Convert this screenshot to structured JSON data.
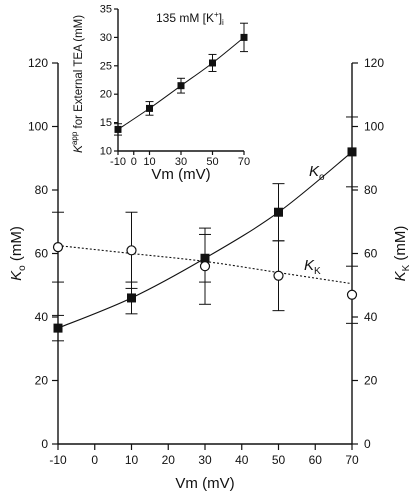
{
  "chart_data": [
    {
      "type": "scatter",
      "x": [
        -10,
        10,
        30,
        50,
        70
      ],
      "xlabel": "Vm (mV)",
      "ylabel_left_var": "K",
      "ylabel_left_sub": "o",
      "ylabel_left_unit": " (mM)",
      "ylabel_right_var": "K",
      "ylabel_right_sub": "K",
      "ylabel_right_unit": " (mM)",
      "xlim": [
        -10,
        70
      ],
      "ylim": [
        0,
        120
      ],
      "xticks": [
        "-10",
        "0",
        "10",
        "20",
        "30",
        "40",
        "50",
        "60",
        "70"
      ],
      "yticks": [
        "0",
        "20",
        "40",
        "60",
        "80",
        "100",
        "120"
      ],
      "series": [
        {
          "name_var": "K",
          "name_sub": "o",
          "marker": "filled-square",
          "line": "solid",
          "values": [
            36.5,
            46,
            58.5,
            73,
            92
          ],
          "error": [
            4,
            5,
            7.5,
            9,
            11
          ],
          "fit": [
            36.5,
            46,
            58.5,
            73,
            92
          ]
        },
        {
          "name_var": "K",
          "name_sub": "K",
          "marker": "open-circle",
          "line": "dotted",
          "values": [
            62,
            61,
            56,
            53,
            47
          ],
          "error": [
            11,
            12,
            12,
            11,
            9
          ],
          "fit": [
            62.5,
            60,
            57.5,
            54,
            50.5
          ]
        }
      ]
    },
    {
      "type": "scatter",
      "annotation": "135 mM [K",
      "annotation_sup": "+",
      "annotation_sub": "]",
      "annotation_subscript": "i",
      "xlabel": "Vm (mV)",
      "ylabel_var": "K",
      "ylabel_sup": "app",
      "ylabel_rest": " for External TEA (mM)",
      "xlim": [
        -10,
        70
      ],
      "ylim": [
        10,
        35
      ],
      "xticks": [
        "-10",
        "0",
        "10",
        "30",
        "50",
        "70"
      ],
      "yticks": [
        "10",
        "15",
        "20",
        "25",
        "30",
        "35"
      ],
      "series": [
        {
          "marker": "filled-square",
          "line": "solid",
          "x": [
            -10,
            10,
            30,
            50,
            70
          ],
          "values": [
            13.8,
            17.5,
            21.5,
            25.5,
            30
          ],
          "error": [
            1,
            1.2,
            1.3,
            1.5,
            2.5
          ]
        }
      ]
    }
  ]
}
